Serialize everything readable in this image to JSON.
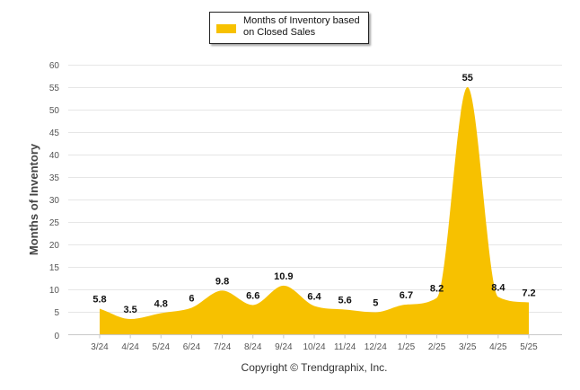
{
  "chart_data": {
    "type": "area",
    "categories": [
      "3/24",
      "4/24",
      "5/24",
      "6/24",
      "7/24",
      "8/24",
      "9/24",
      "10/24",
      "11/24",
      "12/24",
      "1/25",
      "2/25",
      "3/25",
      "4/25",
      "5/25"
    ],
    "series": [
      {
        "name": "Months of Inventory based on Closed Sales",
        "values": [
          5.8,
          3.5,
          4.8,
          6,
          9.8,
          6.6,
          10.9,
          6.4,
          5.6,
          5,
          6.7,
          8.2,
          55,
          8.4,
          7.2
        ],
        "labels": [
          "5.8",
          "3.5",
          "4.8",
          "6",
          "9.8",
          "6.6",
          "10.9",
          "6.4",
          "5.6",
          "5",
          "6.7",
          "8.2",
          "55",
          "8.4",
          "7.2"
        ],
        "color": "#F7C100"
      }
    ],
    "ylabel": "Months of Inventory",
    "xlabel": "",
    "ylim": [
      0,
      60
    ],
    "yticks": [
      0,
      5,
      10,
      15,
      20,
      25,
      30,
      35,
      40,
      45,
      50,
      55,
      60
    ],
    "grid": true,
    "legend": "top-center"
  },
  "legend": {
    "label": "Months of Inventory based on Closed Sales",
    "color": "#F7C100"
  },
  "footer": {
    "copyright": "Copyright © Trendgraphix, Inc."
  }
}
